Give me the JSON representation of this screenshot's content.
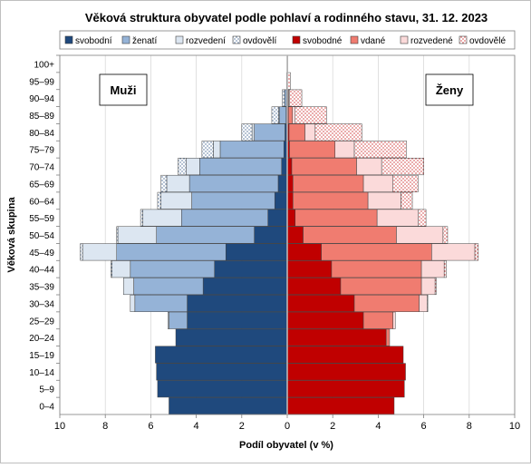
{
  "chart_data": {
    "type": "bar",
    "orientation": "horizontal",
    "layout": "population-pyramid",
    "title": "Věková struktura obyvatel podle pohlaví a rodinného stavu, 31. 12. 2023",
    "xlabel": "Podíl obyvatel (v %)",
    "ylabel": "Věková skupina",
    "xlim": [
      -10,
      10
    ],
    "x_tick_values": [
      -10,
      -8,
      -6,
      -4,
      -2,
      0,
      2,
      4,
      6,
      8,
      10
    ],
    "x_tick_labels": [
      "10",
      "8",
      "6",
      "4",
      "2",
      "0",
      "2",
      "4",
      "6",
      "8",
      "10"
    ],
    "grid": "vertical",
    "legend_position": "top",
    "panel_labels": {
      "left": "Muži",
      "right": "Ženy"
    },
    "categories": [
      "0–4",
      "5–9",
      "10–14",
      "15–19",
      "20–24",
      "25–29",
      "30–34",
      "35–39",
      "40–44",
      "45–49",
      "50–54",
      "55–59",
      "60–64",
      "65–69",
      "70–74",
      "75–79",
      "80–84",
      "85–89",
      "90–94",
      "95–99",
      "100+"
    ],
    "men": [
      {
        "name": "svobodní",
        "color": "#1f497d",
        "pattern": "solid",
        "values": [
          5.2,
          5.7,
          5.75,
          5.8,
          4.9,
          4.4,
          4.4,
          3.7,
          3.2,
          2.7,
          1.45,
          0.85,
          0.55,
          0.4,
          0.25,
          0.15,
          0.1,
          0.05,
          0.03,
          0.0,
          0.0
        ]
      },
      {
        "name": "ženatí",
        "color": "#95b3d7",
        "pattern": "solid",
        "values": [
          0.0,
          0.0,
          0.0,
          0.0,
          0.0,
          0.8,
          2.3,
          3.05,
          3.7,
          4.8,
          4.3,
          3.8,
          3.65,
          3.9,
          3.6,
          2.8,
          1.35,
          0.3,
          0.08,
          0.0,
          0.0
        ]
      },
      {
        "name": "rozvedení",
        "color": "#dce6f1",
        "pattern": "solid",
        "values": [
          0.0,
          0.0,
          0.0,
          0.0,
          0.0,
          0.05,
          0.2,
          0.45,
          0.8,
          1.5,
          1.7,
          1.7,
          1.35,
          1.0,
          0.6,
          0.3,
          0.1,
          0.03,
          0.01,
          0.0,
          0.0
        ]
      },
      {
        "name": "ovdovělí",
        "color": "#ffffff",
        "pattern": "dots-navy",
        "values": [
          0.0,
          0.0,
          0.0,
          0.0,
          0.0,
          0.0,
          0.0,
          0.0,
          0.05,
          0.1,
          0.05,
          0.1,
          0.15,
          0.25,
          0.35,
          0.5,
          0.45,
          0.3,
          0.1,
          0.03,
          0.0
        ]
      }
    ],
    "women": [
      {
        "name": "svobodné",
        "color": "#c00000",
        "pattern": "solid",
        "values": [
          4.7,
          5.15,
          5.2,
          5.1,
          4.35,
          3.35,
          2.95,
          2.35,
          1.95,
          1.5,
          0.7,
          0.35,
          0.25,
          0.25,
          0.2,
          0.1,
          0.08,
          0.05,
          0.03,
          0.01,
          0.0
        ]
      },
      {
        "name": "vdané",
        "color": "#f07c70",
        "pattern": "solid",
        "values": [
          0.0,
          0.0,
          0.0,
          0.0,
          0.15,
          1.3,
          2.85,
          3.55,
          3.95,
          4.85,
          4.1,
          3.6,
          3.3,
          3.1,
          2.85,
          2.0,
          0.7,
          0.18,
          0.03,
          0.0,
          0.0
        ]
      },
      {
        "name": "rozvedené",
        "color": "#fbdada",
        "pattern": "solid",
        "values": [
          0.0,
          0.0,
          0.0,
          0.0,
          0.0,
          0.1,
          0.35,
          0.6,
          1.0,
          1.9,
          2.05,
          1.8,
          1.45,
          1.3,
          1.1,
          0.85,
          0.45,
          0.1,
          0.03,
          0.0,
          0.0
        ]
      },
      {
        "name": "ovdovělé",
        "color": "#ffffff",
        "pattern": "dots-red",
        "values": [
          0.0,
          0.0,
          0.0,
          0.0,
          0.0,
          0.0,
          0.03,
          0.05,
          0.1,
          0.15,
          0.2,
          0.35,
          0.5,
          1.1,
          1.85,
          2.3,
          2.05,
          1.4,
          0.55,
          0.13,
          0.02
        ]
      }
    ]
  }
}
